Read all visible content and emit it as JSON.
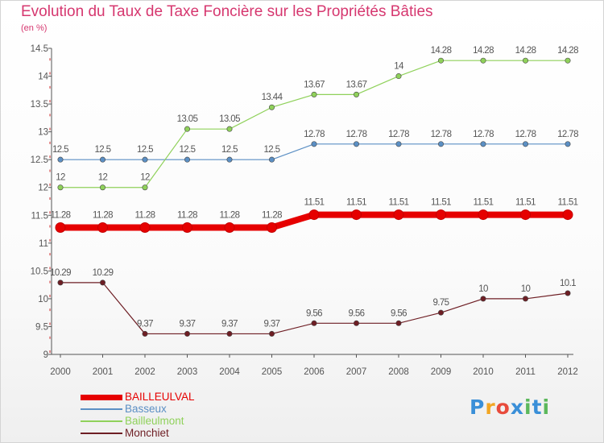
{
  "title": "Evolution du Taux de Taxe Foncière sur les Propriétés Bâties",
  "unit_label": "(en %)",
  "logo": {
    "text": "Proxiti",
    "colors": [
      "#3a8fd8",
      "#f2a623",
      "#e84b3c",
      "#3a8fd8",
      "#5cb85c",
      "#3a8fd8",
      "#5cb85c"
    ]
  },
  "colors": {
    "title": "#d6376f",
    "axis": "#555555",
    "tick_mark": "#cc2a2a",
    "label_text": "#555555"
  },
  "chart_data": {
    "type": "line",
    "x": [
      "2000",
      "2001",
      "2002",
      "2003",
      "2004",
      "2005",
      "2006",
      "2007",
      "2008",
      "2009",
      "2010",
      "2011",
      "2012"
    ],
    "ylim": [
      9,
      14.5
    ],
    "yticks": [
      "9",
      "9.5",
      "10",
      "10.5",
      "11",
      "11.5",
      "12",
      "12.5",
      "13",
      "13.5",
      "14",
      "14.5"
    ],
    "grid": false,
    "legend_position": "bottom-left",
    "series": [
      {
        "name": "BAILLEULVAL",
        "color": "#e60000",
        "emphasis": true,
        "values": [
          11.28,
          11.28,
          11.28,
          11.28,
          11.28,
          11.28,
          11.51,
          11.51,
          11.51,
          11.51,
          11.51,
          11.51,
          11.51
        ],
        "labels": [
          "11.28",
          "11.28",
          "11.28",
          "11.28",
          "11.28",
          "11.28",
          "11.51",
          "11.51",
          "11.51",
          "11.51",
          "11.51",
          "11.51",
          "11.51"
        ]
      },
      {
        "name": "Basseux",
        "color": "#5b8fc4",
        "emphasis": false,
        "values": [
          12.5,
          12.5,
          12.5,
          12.5,
          12.5,
          12.5,
          12.78,
          12.78,
          12.78,
          12.78,
          12.78,
          12.78,
          12.78
        ],
        "labels": [
          "12.5",
          "12.5",
          "12.5",
          "12.5",
          "12.5",
          "12.5",
          "12.78",
          "12.78",
          "12.78",
          "12.78",
          "12.78",
          "12.78",
          "12.78"
        ]
      },
      {
        "name": "Bailleulmont",
        "color": "#8fd15a",
        "emphasis": false,
        "values": [
          12,
          12,
          12,
          13.05,
          13.05,
          13.44,
          13.67,
          13.67,
          14,
          14.28,
          14.28,
          14.28,
          14.28
        ],
        "labels": [
          "12",
          "12",
          "12",
          "13.05",
          "13.05",
          "13.44",
          "13.67",
          "13.67",
          "14",
          "14.28",
          "14.28",
          "14.28",
          "14.28"
        ]
      },
      {
        "name": "Monchiet",
        "color": "#6e1e24",
        "emphasis": false,
        "values": [
          10.29,
          10.29,
          9.37,
          9.37,
          9.37,
          9.37,
          9.56,
          9.56,
          9.56,
          9.75,
          10,
          10,
          10.1
        ],
        "labels": [
          "10.29",
          "10.29",
          "9.37",
          "9.37",
          "9.37",
          "9.37",
          "9.56",
          "9.56",
          "9.56",
          "9.75",
          "10",
          "10",
          "10.1"
        ]
      }
    ]
  }
}
